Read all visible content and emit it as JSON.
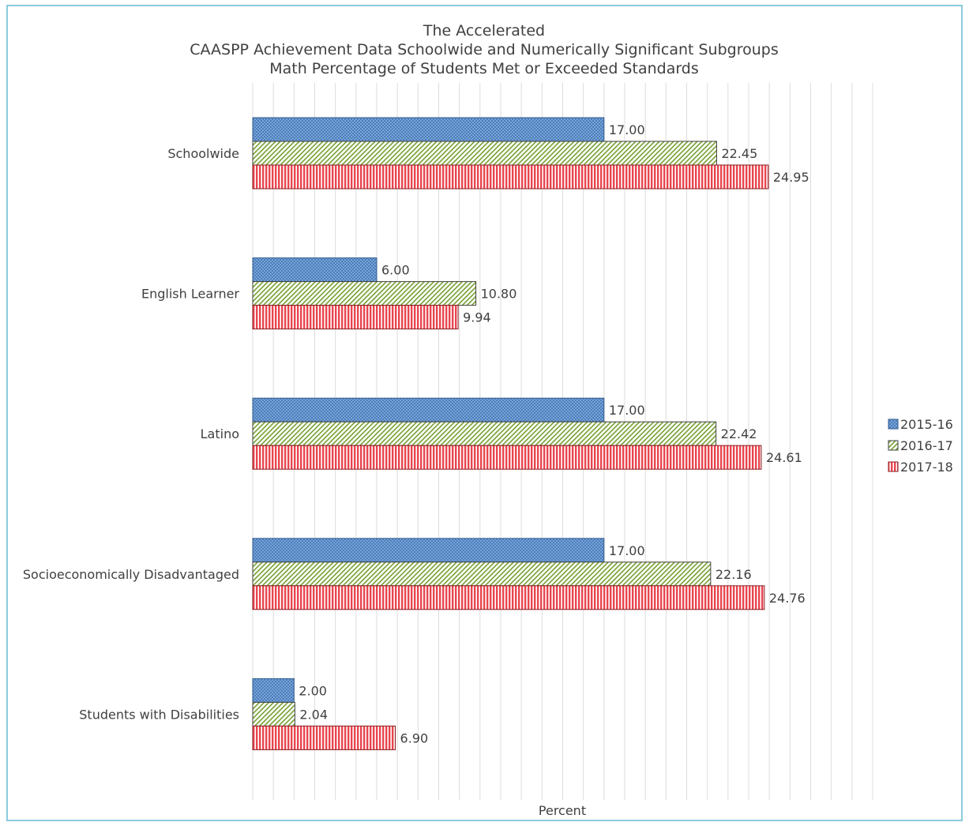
{
  "chart_data": {
    "type": "bar",
    "orientation": "horizontal",
    "title": [
      "The Accelerated",
      "CAASPP Achievement Data Schoolwide and Numerically Significant Subgroups",
      "Math Percentage of Students Met or Exceeded Standards"
    ],
    "xlabel": "Percent",
    "ylabel": "",
    "xlim": [
      0,
      30
    ],
    "grid": true,
    "legend_position": "right",
    "categories": [
      "Schoolwide",
      "English Learner",
      "Latino",
      "Socioeconomically Disadvantaged",
      "Students with Disabilities"
    ],
    "series": [
      {
        "name": "2015-16",
        "values": [
          17.0,
          6.0,
          17.0,
          17.0,
          2.0
        ],
        "labels": [
          "17.00",
          "6.00",
          "17.00",
          "17.00",
          "2.00"
        ],
        "color": "#4a7ebb",
        "pattern": "dots"
      },
      {
        "name": "2016-17",
        "values": [
          22.45,
          10.8,
          22.42,
          22.16,
          2.04
        ],
        "labels": [
          "22.45",
          "10.80",
          "22.42",
          "22.16",
          "2.04"
        ],
        "color": "#77a033",
        "pattern": "diagonal"
      },
      {
        "name": "2017-18",
        "values": [
          24.95,
          9.94,
          24.61,
          24.76,
          6.9
        ],
        "labels": [
          "24.95",
          "9.94",
          "24.61",
          "24.76",
          "6.90"
        ],
        "color": "#e8454e",
        "pattern": "vertical"
      }
    ]
  }
}
